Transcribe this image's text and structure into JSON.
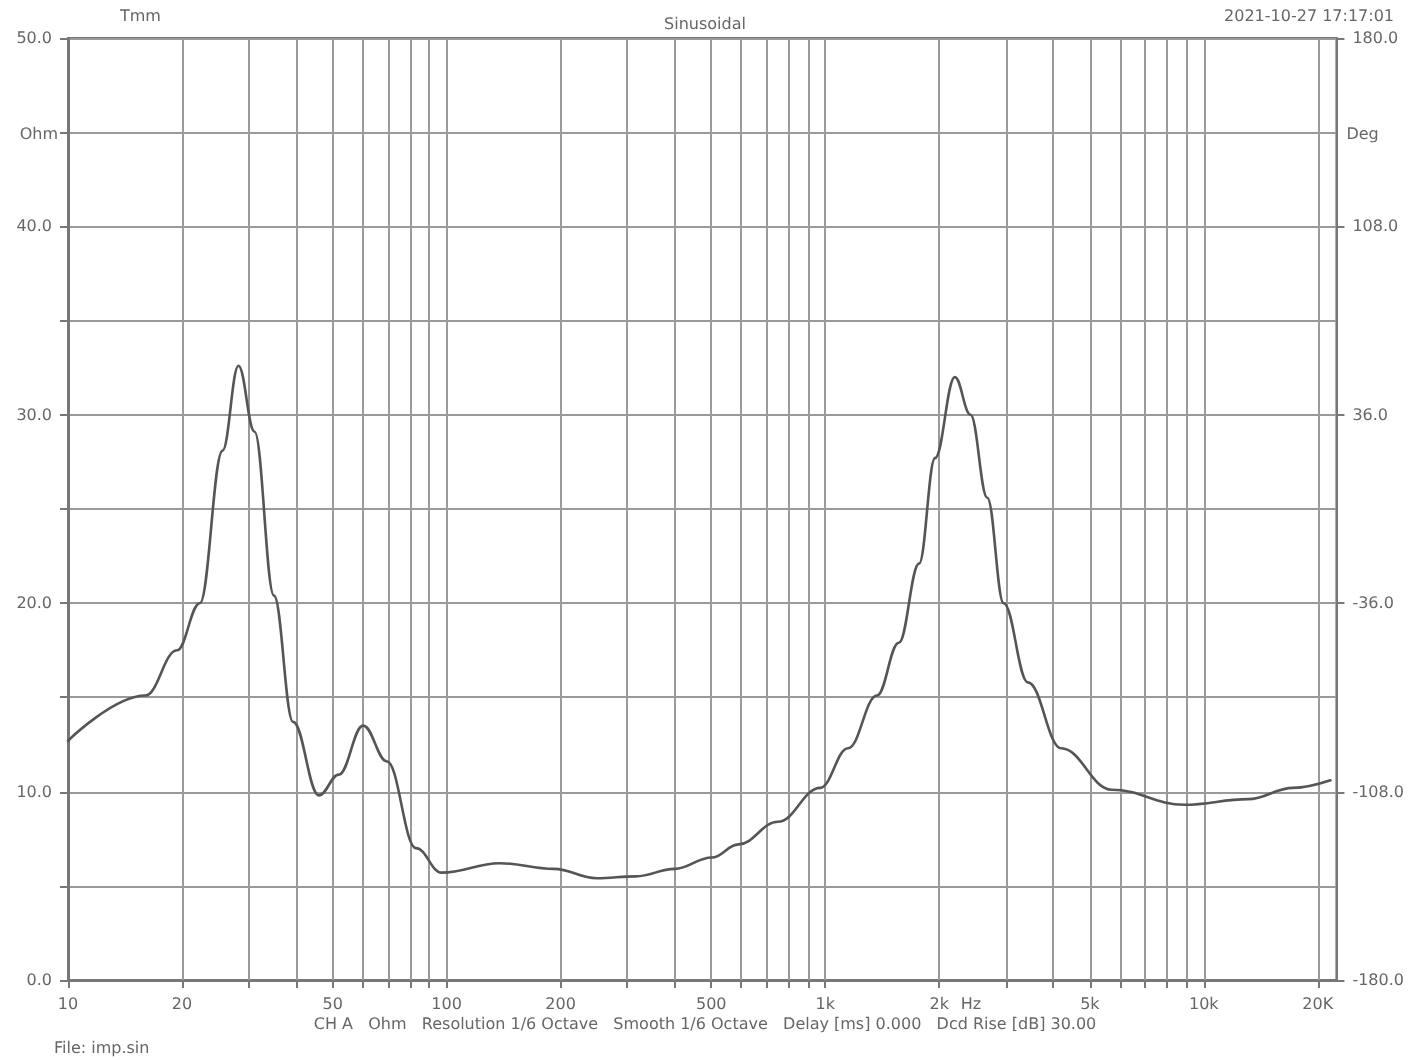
{
  "chart_data": {
    "type": "line",
    "title": "Sinusoidal",
    "xlabel": "Hz",
    "ylabel": "Ohm",
    "y2label": "Deg",
    "annotations": [
      "Tmm",
      "2021-10-27 17:17:01",
      "CH A   Ohm   Resolution 1/6 Octave   Smooth 1/6 Octave   Delay [ms] 0.000   Dcd Rise [dB] 30.00",
      "File: imp.sin"
    ],
    "log": "x",
    "grid": true,
    "marker": "none",
    "line_style": "solid",
    "xlim": [
      10,
      22400
    ],
    "xticks": [
      10,
      20,
      {
        "value": 30,
        "label": null
      },
      {
        "value": 40,
        "label": null
      },
      50,
      {
        "value": 60,
        "label": null
      },
      {
        "value": 70,
        "label": null
      },
      {
        "value": 80,
        "label": null
      },
      {
        "value": 90,
        "label": null
      },
      100,
      200,
      {
        "value": 300,
        "label": null
      },
      {
        "value": 400,
        "label": null
      },
      500,
      {
        "value": 600,
        "label": null
      },
      {
        "value": 700,
        "label": null
      },
      {
        "value": 800,
        "label": null
      },
      {
        "value": 900,
        "label": null
      },
      {
        "value": 1000,
        "label": "1k"
      },
      {
        "value": 2000,
        "label": "2k"
      },
      {
        "value": 3000,
        "label": null
      },
      {
        "value": 4000,
        "label": null
      },
      {
        "value": 5000,
        "label": "5k"
      },
      {
        "value": 6000,
        "label": null
      },
      {
        "value": 7000,
        "label": null
      },
      {
        "value": 8000,
        "label": null
      },
      {
        "value": 9000,
        "label": null
      },
      {
        "value": 10000,
        "label": "10k"
      },
      {
        "value": 20000,
        "label": "20K"
      }
    ],
    "ylim": [
      0,
      50
    ],
    "yticks": [
      {
        "value": 0,
        "label": "0.0"
      },
      {
        "value": 5,
        "label": null
      },
      {
        "value": 10,
        "label": "10.0"
      },
      {
        "value": 15,
        "label": null
      },
      {
        "value": 20,
        "label": "20.0"
      },
      {
        "value": 25,
        "label": null
      },
      {
        "value": 30,
        "label": "30.0"
      },
      {
        "value": 35,
        "label": null
      },
      {
        "value": 40,
        "label": "40.0"
      },
      {
        "value": 45,
        "label": null
      },
      {
        "value": 50,
        "label": "50.0"
      }
    ],
    "y2lim": [
      -180,
      180
    ],
    "y2ticks": [
      {
        "value": -180,
        "label": "-180.0"
      },
      {
        "value": -108,
        "label": "-108.0"
      },
      {
        "value": -36,
        "label": "-36.0"
      },
      {
        "value": 36,
        "label": "36.0"
      },
      {
        "value": 108,
        "label": "108.0"
      },
      {
        "value": 180,
        "label": "180.0"
      }
    ],
    "series": [
      {
        "color": "#555555",
        "x": [
          10,
          16,
          19.4,
          22.3,
          25.6,
          28.2,
          31.1,
          35,
          39.3,
          46,
          51.9,
          60.2,
          69.6,
          83,
          97,
          138,
          192,
          249,
          316,
          400,
          502,
          590,
          750,
          970,
          1149,
          1370,
          1565,
          1770,
          1950,
          2200,
          2420,
          2680,
          2960,
          3430,
          4200,
          5710,
          8880,
          13100,
          17200,
          21600
        ],
        "values": [
          12.7,
          15.1,
          17.5,
          20.0,
          28.1,
          32.6,
          29.1,
          20.4,
          13.7,
          9.8,
          10.9,
          13.5,
          11.6,
          7.0,
          5.7,
          6.2,
          5.9,
          5.4,
          5.5,
          5.9,
          6.5,
          7.2,
          8.4,
          10.2,
          12.3,
          15.1,
          17.9,
          22.1,
          27.7,
          32.0,
          30.0,
          25.6,
          20.0,
          15.8,
          12.3,
          10.1,
          9.3,
          9.6,
          10.2,
          10.6
        ]
      }
    ]
  }
}
